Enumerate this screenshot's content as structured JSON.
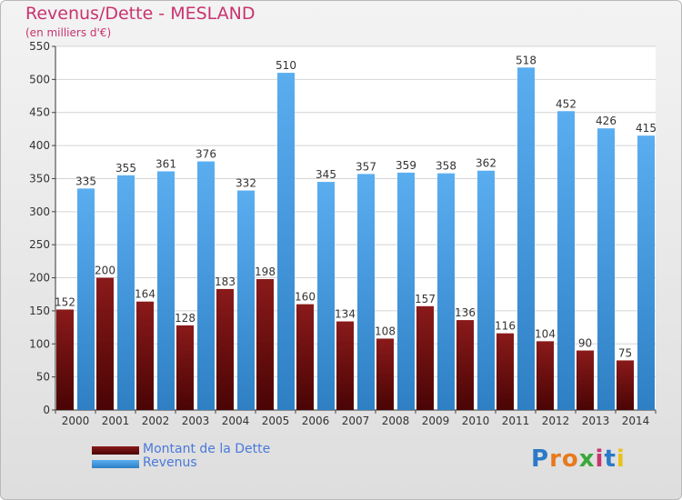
{
  "header": {
    "title": "Revenus/Dette - MESLAND",
    "subtitle": "(en milliers d'€)"
  },
  "legend": {
    "items": [
      {
        "label": "Montant de la Dette",
        "color": "#6b0c0c"
      },
      {
        "label": "Revenus",
        "color": "#4a9fe0"
      }
    ]
  },
  "brand": {
    "letters": [
      "P",
      "r",
      "o",
      "x",
      "i",
      "t",
      "i"
    ],
    "colors": [
      "#2b7ac8",
      "#e87a1d",
      "#e87a1d",
      "#3aa83a",
      "#c8336e",
      "#2b7ac8",
      "#e8c21d"
    ]
  },
  "chart_data": {
    "type": "bar",
    "title": "Revenus/Dette - MESLAND",
    "subtitle": "(en milliers d'€)",
    "categories": [
      "2000",
      "2001",
      "2002",
      "2003",
      "2004",
      "2005",
      "2006",
      "2007",
      "2008",
      "2009",
      "2010",
      "2011",
      "2012",
      "2013",
      "2014"
    ],
    "series": [
      {
        "name": "Montant de la Dette",
        "color": "#6b0c0c",
        "values": [
          152,
          200,
          164,
          128,
          183,
          198,
          160,
          134,
          108,
          157,
          136,
          116,
          104,
          90,
          75
        ]
      },
      {
        "name": "Revenus",
        "color": "#4a9fe0",
        "values": [
          335,
          355,
          361,
          376,
          332,
          510,
          345,
          357,
          359,
          358,
          362,
          518,
          452,
          426,
          415
        ]
      }
    ],
    "ylim": [
      0,
      550
    ],
    "yticks": [
      0,
      50,
      100,
      150,
      200,
      250,
      300,
      350,
      400,
      450,
      500,
      550
    ],
    "grid": true,
    "legend_position": "bottom-left"
  }
}
